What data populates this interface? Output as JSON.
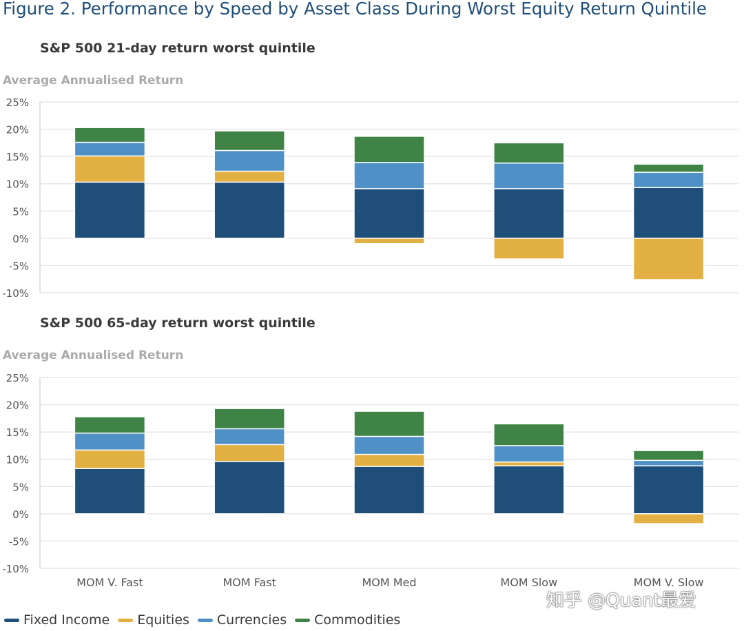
{
  "figure_title": "Figure 2. Performance by Speed by Asset Class During Worst Equity Return Quintile",
  "watermark": "知乎 @Quant最爱",
  "legend": [
    {
      "name": "Fixed Income",
      "color": "#1f4e79"
    },
    {
      "name": "Equities",
      "color": "#e3b043"
    },
    {
      "name": "Currencies",
      "color": "#4f90c6"
    },
    {
      "name": "Commodities",
      "color": "#3f8446"
    }
  ],
  "chart_data": [
    {
      "type": "bar",
      "stacked": true,
      "title": "S&P 500 21-day return worst quintile",
      "ylabel": "Average Annualised Return",
      "ylim": [
        -10,
        25
      ],
      "yticks": [
        "25%",
        "20%",
        "15%",
        "10%",
        "5%",
        "0%",
        "-5%",
        "-10%"
      ],
      "categories": [
        "MOM V. Fast",
        "MOM Fast",
        "MOM Med",
        "MOM Slow",
        "MOM V. Slow"
      ],
      "show_xlabels": false,
      "series": [
        {
          "name": "Fixed Income",
          "values": [
            10.3,
            10.3,
            9.1,
            9.1,
            9.3
          ]
        },
        {
          "name": "Equities",
          "values": [
            4.8,
            2.0,
            -1.0,
            -3.8,
            -7.6
          ]
        },
        {
          "name": "Currencies",
          "values": [
            2.5,
            3.8,
            4.8,
            4.7,
            2.8
          ]
        },
        {
          "name": "Commodities",
          "values": [
            2.7,
            3.6,
            4.8,
            3.7,
            1.5
          ]
        }
      ]
    },
    {
      "type": "bar",
      "stacked": true,
      "title": "S&P 500 65-day return worst quintile",
      "ylabel": "Average Annualised Return",
      "ylim": [
        -10,
        25
      ],
      "yticks": [
        "25%",
        "20%",
        "15%",
        "10%",
        "5%",
        "0%",
        "-5%",
        "-10%"
      ],
      "categories": [
        "MOM V. Fast",
        "MOM Fast",
        "MOM Med",
        "MOM Slow",
        "MOM V. Slow"
      ],
      "show_xlabels": true,
      "series": [
        {
          "name": "Fixed Income",
          "values": [
            8.3,
            9.6,
            8.7,
            8.8,
            8.8
          ]
        },
        {
          "name": "Equities",
          "values": [
            3.4,
            3.1,
            2.2,
            0.7,
            -1.8
          ]
        },
        {
          "name": "Currencies",
          "values": [
            3.1,
            2.9,
            3.3,
            3.0,
            1.0
          ]
        },
        {
          "name": "Commodities",
          "values": [
            3.0,
            3.7,
            4.6,
            4.0,
            1.8
          ]
        }
      ]
    }
  ]
}
